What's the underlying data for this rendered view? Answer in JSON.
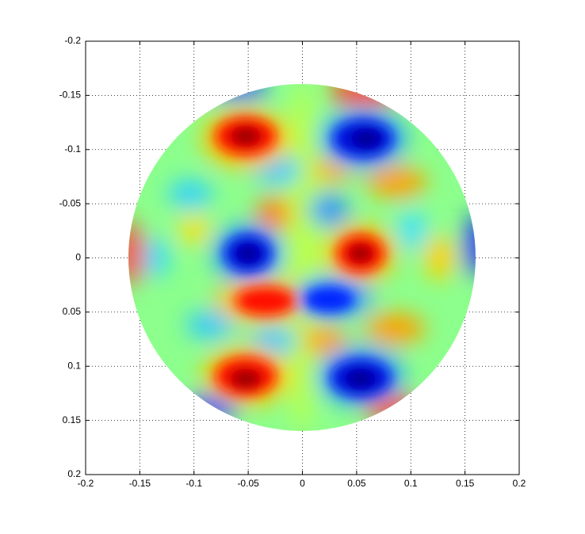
{
  "chart_data": {
    "type": "image",
    "xlim": [
      -0.2,
      0.2
    ],
    "ylim": [
      0.2,
      -0.2
    ],
    "xticks": [
      -0.2,
      -0.15,
      -0.1,
      -0.05,
      0,
      0.05,
      0.1,
      0.15,
      0.2
    ],
    "yticks": [
      -0.2,
      -0.15,
      -0.1,
      -0.05,
      0,
      0.05,
      0.1,
      0.15,
      0.2
    ],
    "grid": true
  }
}
